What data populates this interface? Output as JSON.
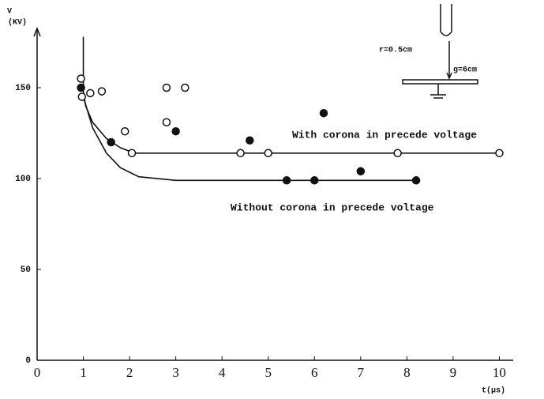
{
  "chart_data": {
    "type": "scatter",
    "xlim": [
      0,
      10.3
    ],
    "ylim": [
      0,
      180
    ],
    "xticks": [
      0,
      1,
      2,
      3,
      4,
      5,
      6,
      7,
      8,
      9,
      10
    ],
    "yticks": [
      0,
      50,
      100,
      150
    ],
    "ylabel": [
      "V",
      "(KV)"
    ],
    "xlabel": "t(μs)",
    "annotations": [
      "r=0.5cm",
      "g=6cm"
    ],
    "series": [
      {
        "name": "With corona in precede voltage",
        "style": "line",
        "color": "#111",
        "x": [
          1,
          1,
          1.05,
          1.2,
          1.5,
          1.8,
          2.1,
          3,
          10
        ],
        "values": [
          178,
          148,
          140,
          131,
          122,
          117,
          114,
          114,
          114
        ]
      },
      {
        "name": "Without corona in precede voltage",
        "style": "line",
        "color": "#111",
        "x": [
          1,
          1.2,
          1.5,
          1.8,
          2.2,
          3,
          8.2
        ],
        "values": [
          145,
          128,
          114,
          106,
          101,
          99,
          99
        ]
      },
      {
        "style": "open",
        "color": "#111",
        "x": [
          0.95,
          0.97,
          1.15,
          1.4,
          1.9,
          2.05,
          2.8,
          2.8,
          3.2,
          4.4,
          5.0,
          7.8,
          10
        ],
        "values": [
          155,
          145,
          147,
          148,
          126,
          114,
          150,
          131,
          150,
          114,
          114,
          114,
          114
        ]
      },
      {
        "style": "filled",
        "color": "#111",
        "x": [
          0.95,
          1.6,
          3.0,
          4.6,
          5.4,
          6.0,
          6.2,
          7.0,
          8.2
        ],
        "values": [
          150,
          120,
          126,
          121,
          99,
          99,
          136,
          104,
          99
        ]
      }
    ]
  }
}
